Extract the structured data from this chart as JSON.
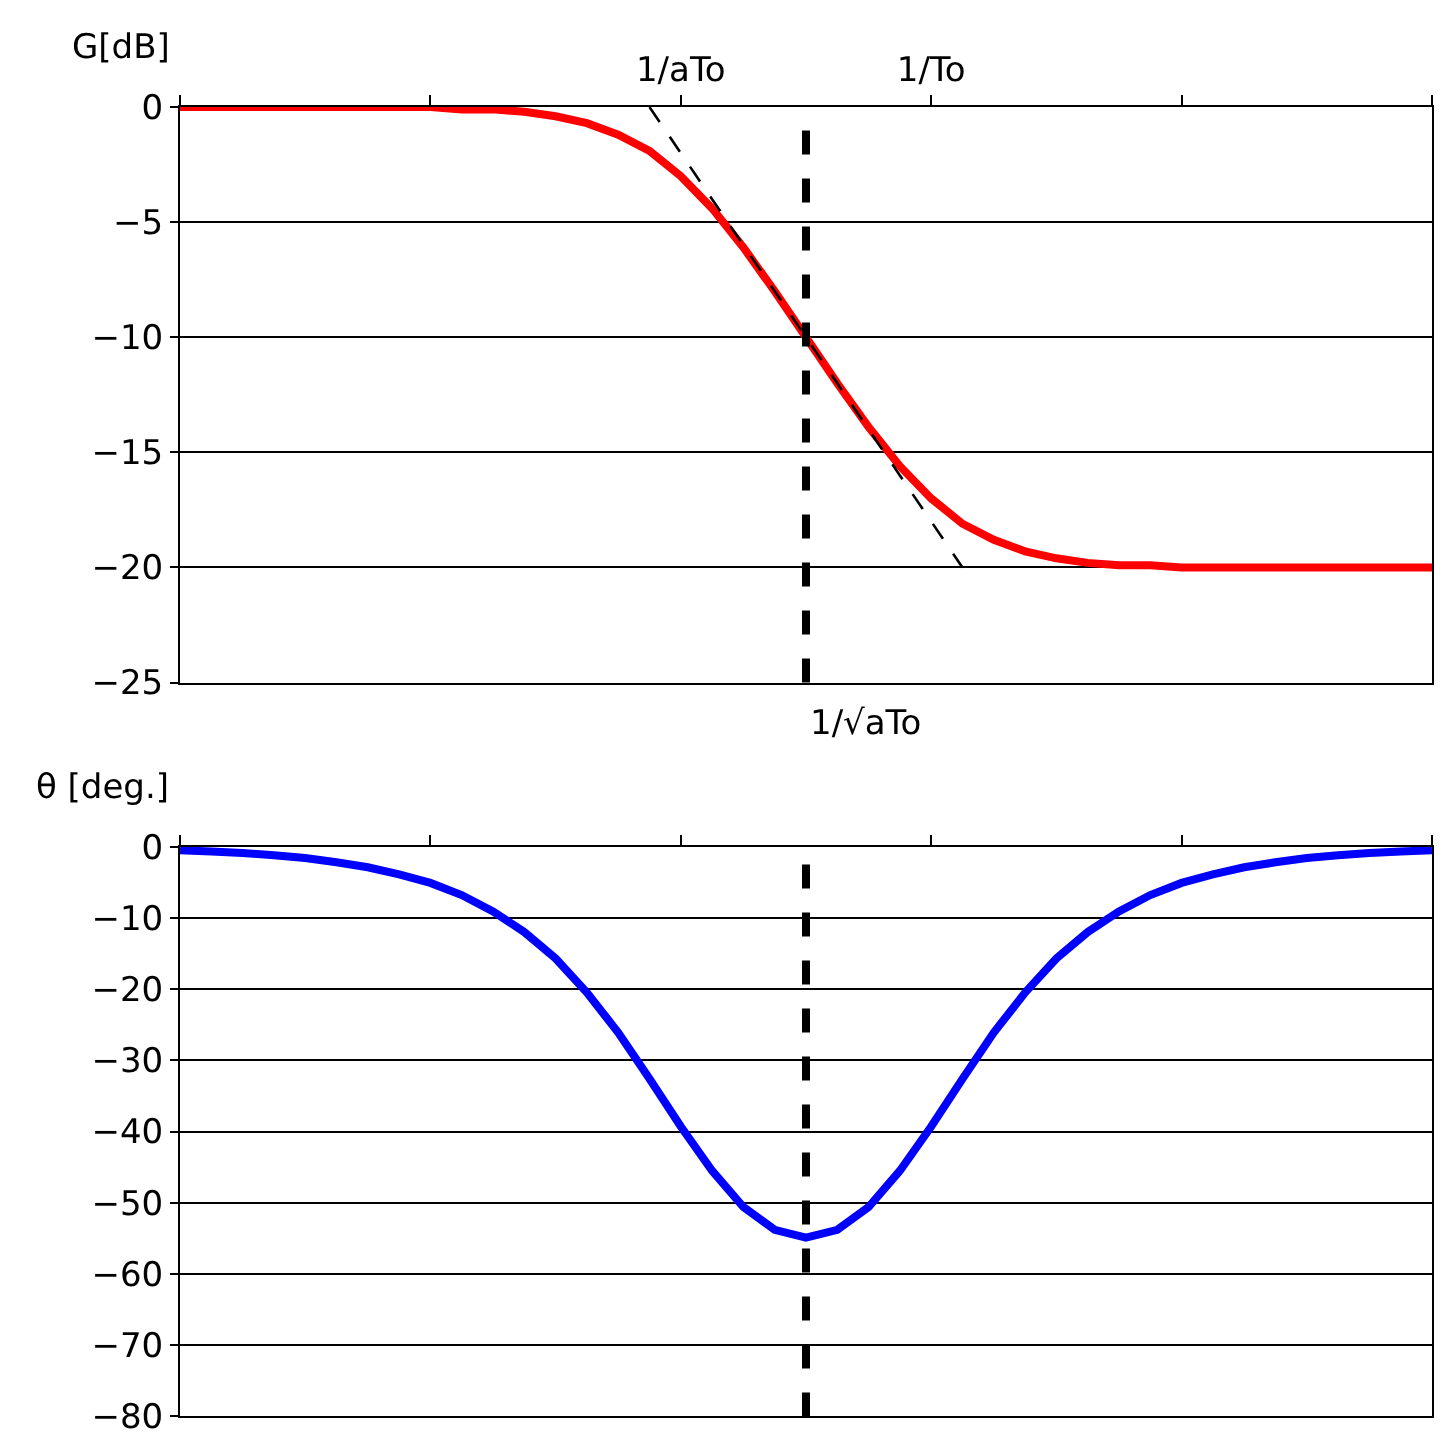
{
  "chart_data": [
    {
      "type": "line",
      "ylabel": "G[dB]",
      "categories": [
        null,
        null,
        null,
        null,
        null,
        null,
        null,
        null,
        null,
        null,
        null,
        null,
        null,
        null,
        null,
        null,
        "1/aTo",
        null,
        null,
        null,
        null,
        null,
        null,
        null,
        "1/To",
        null,
        null,
        null,
        null,
        null,
        null,
        null,
        null,
        null,
        null,
        null,
        null,
        null,
        null,
        null,
        null
      ],
      "series": [
        {
          "color": "#ff0000",
          "values": [
            0,
            0,
            0,
            0,
            0,
            0,
            0,
            0,
            0,
            -0.1,
            -0.1,
            -0.2,
            -0.4,
            -0.7,
            -1.2,
            -1.9,
            -3.0,
            -4.4,
            -6.1,
            -8.0,
            -10.0,
            -12.0,
            -13.9,
            -15.6,
            -17.0,
            -18.1,
            -18.8,
            -19.3,
            -19.6,
            -19.8,
            -19.9,
            -19.9,
            -20,
            -20,
            -20,
            -20,
            -20,
            -20,
            -20,
            -20,
            -20
          ]
        },
        {
          "type": "line",
          "color": "#000000",
          "line_style": "dashed",
          "values": [
            null,
            null,
            null,
            null,
            null,
            null,
            null,
            null,
            null,
            null,
            null,
            null,
            null,
            null,
            null,
            0,
            -2,
            -4,
            -6,
            -8,
            -10,
            -12,
            -14,
            -16,
            -18,
            -20,
            null,
            null,
            null,
            null,
            null,
            null,
            null,
            null,
            null,
            null,
            null,
            null,
            null,
            null,
            null
          ]
        }
      ],
      "ylim": [
        -25,
        0
      ],
      "yticks": [
        -25,
        -20,
        -15,
        -10,
        -5,
        0
      ],
      "grid": "y",
      "annotations": [
        "1/√aTo"
      ]
    },
    {
      "type": "line",
      "ylabel": "θ [deg.]",
      "tick_labels": "y",
      "categories": [
        null,
        null,
        null,
        null,
        null,
        null,
        null,
        null,
        null,
        null,
        null,
        null,
        null,
        null,
        null,
        null,
        null,
        null,
        null,
        null,
        null,
        null,
        null,
        null,
        null,
        null,
        null,
        null,
        null,
        null,
        null,
        null,
        null,
        null,
        null,
        null,
        null,
        null,
        null,
        null,
        null
      ],
      "series": [
        {
          "color": "#0000ff",
          "values": [
            -0.5,
            -0.7,
            -0.9,
            -1.2,
            -1.6,
            -2.2,
            -2.9,
            -3.9,
            -5.1,
            -6.8,
            -9.1,
            -12.0,
            -15.7,
            -20.5,
            -26.1,
            -32.6,
            -39.3,
            -45.5,
            -50.6,
            -53.8,
            -54.9,
            -53.8,
            -50.6,
            -45.5,
            -39.3,
            -32.6,
            -26.1,
            -20.5,
            -15.7,
            -12.0,
            -9.1,
            -6.8,
            -5.1,
            -3.9,
            -2.9,
            -2.2,
            -1.6,
            -1.2,
            -0.9,
            -0.7,
            -0.5
          ]
        }
      ],
      "ylim": [
        -80,
        0
      ],
      "yticks": [
        -80,
        -70,
        -60,
        -50,
        -40,
        -30,
        -20,
        -10,
        0
      ],
      "grid": "y"
    }
  ]
}
